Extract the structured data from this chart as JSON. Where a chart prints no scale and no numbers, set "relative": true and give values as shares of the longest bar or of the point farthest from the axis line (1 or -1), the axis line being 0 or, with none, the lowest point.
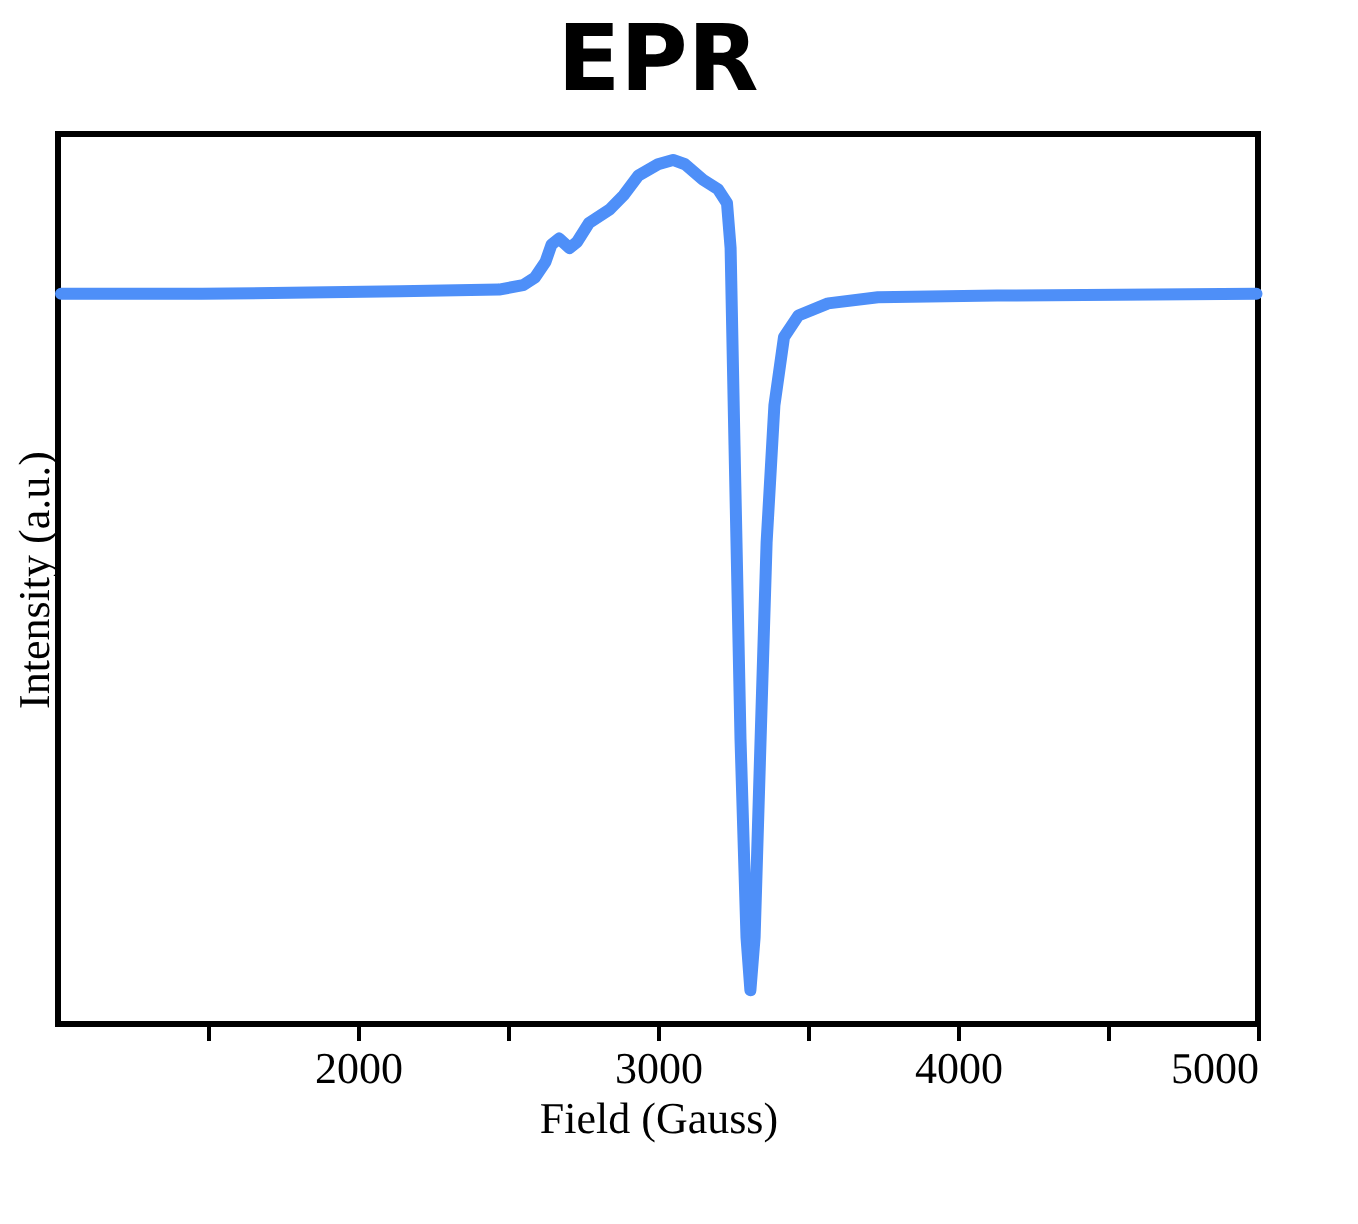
{
  "chart_data": {
    "type": "line",
    "title": "EPR",
    "xlabel": "Field (Gauss)",
    "ylabel": "Intensity (a.u.)",
    "relative": true,
    "xlim": [
      1000,
      5000
    ],
    "xticks": [
      {
        "value": 1500,
        "label": null
      },
      2000,
      {
        "value": 2500,
        "label": null
      },
      3000,
      {
        "value": 3500,
        "label": null
      },
      4000,
      {
        "value": 4500,
        "label": null
      },
      5000
    ],
    "grid": false,
    "marker": "none",
    "line_style": "solid",
    "series": [
      {
        "color": "#4e8ff8",
        "x": [
          1010,
          1480,
          2140,
          2470,
          2550,
          2590,
          2625,
          2645,
          2670,
          2705,
          2730,
          2770,
          2840,
          2885,
          2935,
          3000,
          3050,
          3090,
          3150,
          3200,
          3230,
          3242,
          3255,
          3275,
          3295,
          3308,
          3322,
          3342,
          3362,
          3388,
          3420,
          3468,
          3567,
          3733,
          4130,
          4995
        ],
        "values": [
          0.845,
          0.845,
          0.848,
          0.85,
          0.855,
          0.864,
          0.882,
          0.902,
          0.909,
          0.898,
          0.905,
          0.927,
          0.943,
          0.959,
          0.982,
          0.995,
          1.0,
          0.995,
          0.977,
          0.966,
          0.95,
          0.898,
          0.67,
          0.33,
          0.1,
          0.039,
          0.1,
          0.33,
          0.557,
          0.716,
          0.795,
          0.82,
          0.834,
          0.841,
          0.843,
          0.845
        ]
      }
    ]
  }
}
